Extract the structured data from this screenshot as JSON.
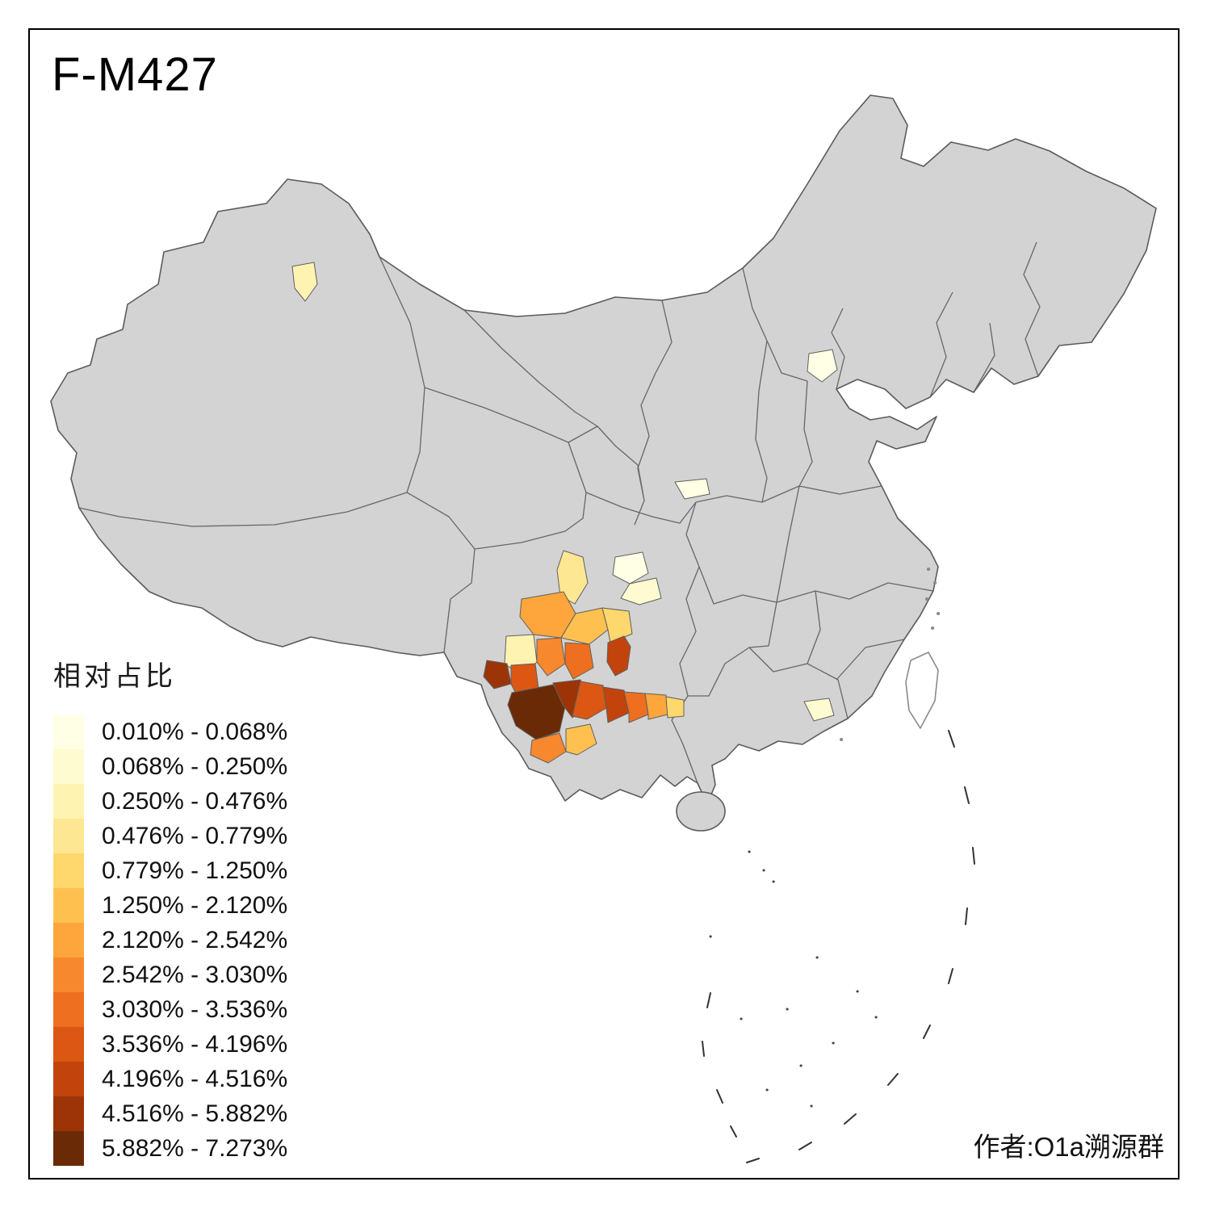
{
  "title": "F-M427",
  "legend": {
    "title": "相对占比",
    "items": [
      {
        "label": "0.010% - 0.068%",
        "color": "#FFFFE5"
      },
      {
        "label": "0.068% - 0.250%",
        "color": "#FFFBD0"
      },
      {
        "label": "0.250% - 0.476%",
        "color": "#FFF3B2"
      },
      {
        "label": "0.476% - 0.779%",
        "color": "#FEE793"
      },
      {
        "label": "0.779% - 1.250%",
        "color": "#FED76D"
      },
      {
        "label": "1.250% - 2.120%",
        "color": "#FEC150"
      },
      {
        "label": "2.120% - 2.542%",
        "color": "#FEA63B"
      },
      {
        "label": "2.542% - 3.030%",
        "color": "#F8882D"
      },
      {
        "label": "3.030% - 3.536%",
        "color": "#EE6F1F"
      },
      {
        "label": "3.536% - 4.196%",
        "color": "#DC5713"
      },
      {
        "label": "4.196% - 4.516%",
        "color": "#C2430B"
      },
      {
        "label": "4.516% - 5.882%",
        "color": "#9C3407"
      },
      {
        "label": "5.882% - 7.273%",
        "color": "#6B2A06"
      }
    ]
  },
  "credit": "作者:O1a溯源群",
  "map": {
    "land_color": "#D3D3D3",
    "boundary_color": "#5B5B5B",
    "sea_color": "#FFFFFF",
    "island_outline_color": "#8A8A8A"
  },
  "chart_data": {
    "type": "heatmap",
    "subtype": "choropleth-map",
    "title": "F-M427",
    "measure": "相对占比",
    "class_breaks_percent": [
      0.01,
      0.068,
      0.25,
      0.476,
      0.779,
      1.25,
      2.12,
      2.542,
      3.03,
      3.536,
      4.196,
      4.516,
      5.882,
      7.273
    ],
    "palette": [
      "#FFFFE5",
      "#FFFBD0",
      "#FFF3B2",
      "#FEE793",
      "#FED76D",
      "#FEC150",
      "#FEA63B",
      "#F8882D",
      "#EE6F1F",
      "#DC5713",
      "#C2430B",
      "#9C3407",
      "#6B2A06"
    ],
    "notes": "Choropleth of China prefectures; highest values concentrated in Yunnan / Sichuan / Guizhou (southwest); isolated pale cells near Beijing, central Shaanxi, Xinjiang and Guangdong; all other prefectures uncolored (gray)."
  }
}
